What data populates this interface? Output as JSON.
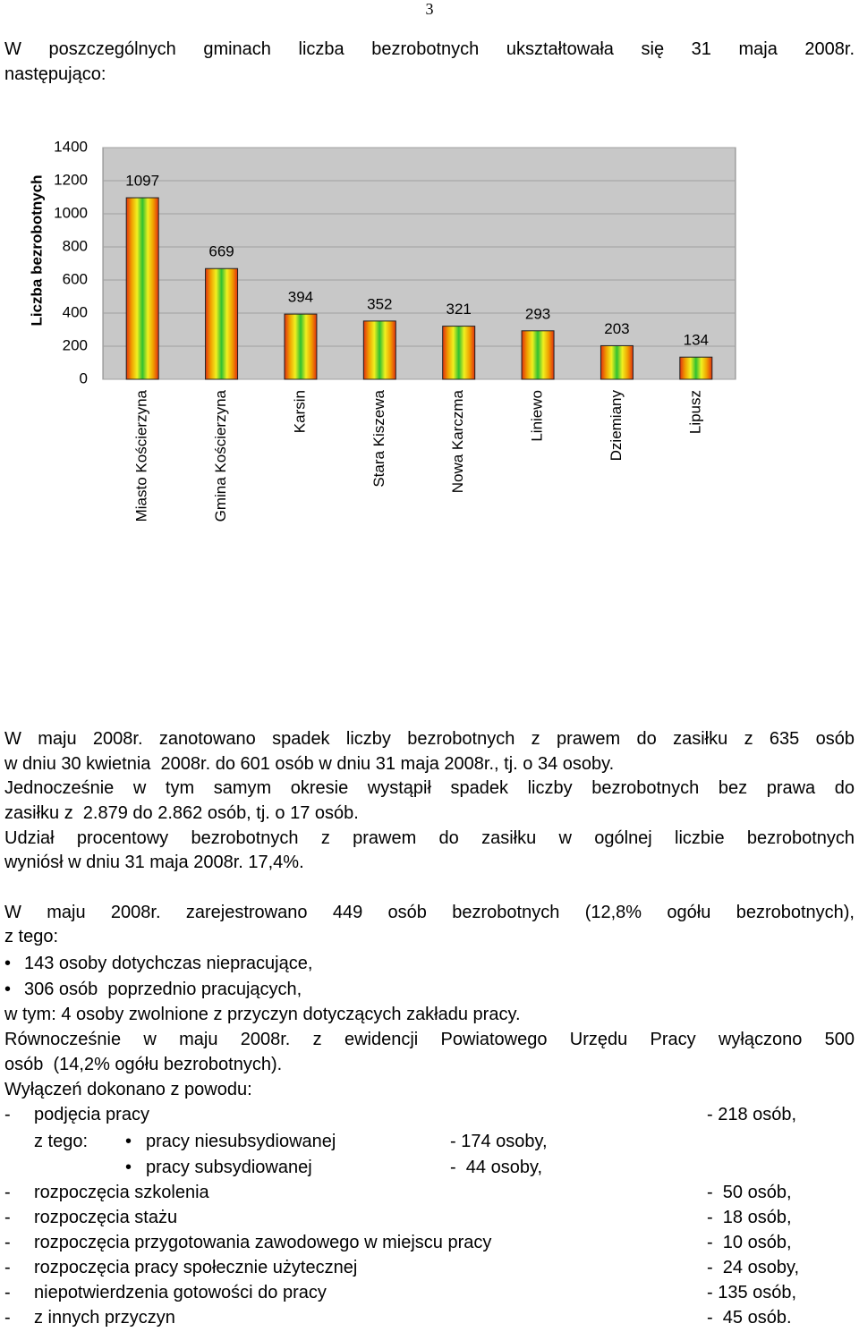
{
  "page_number": "3",
  "intro": [
    "W poszczególnych gminach liczba bezrobotnych ukształtowała się 31 maja 2008r.",
    "następująco:"
  ],
  "chart_data": {
    "type": "bar",
    "ylabel": "Liczba bezrobotnych",
    "categories": [
      "Miasto Kościerzyna",
      "Gmina Kościerzyna",
      "Karsin",
      "Stara Kiszewa",
      "Nowa Karczma",
      "Liniewo",
      "Dziemiany",
      "Lipusz"
    ],
    "values": [
      1097,
      669,
      394,
      352,
      321,
      293,
      203,
      134
    ],
    "ylim": [
      0,
      1400
    ],
    "yticks": [
      0,
      200,
      400,
      600,
      800,
      1000,
      1200,
      1400
    ],
    "grid": true,
    "color_stops": [
      "#e03010",
      "#f0a000",
      "#f0f020",
      "#30c030"
    ]
  },
  "para1": [
    "W maju 2008r. zanotowano spadek liczby bezrobotnych z prawem do zasiłku z 635 osób",
    "w dniu 30 kwietnia  2008r. do 601 osób w dniu 31 maja 2008r., tj. o 34 osoby.",
    "Jednocześnie w tym samym okresie wystąpił spadek liczby bezrobotnych bez prawa do",
    "zasiłku z  2.879 do 2.862 osób, tj. o 17 osób.",
    "Udział procentowy bezrobotnych z prawem do zasiłku w ogólnej liczbie bezrobotnych",
    "wyniósł w dniu 31 maja 2008r. 17,4%."
  ],
  "para2": [
    "W maju 2008r. zarejestrowano 449 osób bezrobotnych (12,8% ogółu bezrobotnych),",
    "z tego:"
  ],
  "bullets": [
    "143 osoby dotychczas niepracujące,",
    "306 osób  poprzednio pracujących,"
  ],
  "para3": [
    "w tym: 4 osoby zwolnione z przyczyn dotyczących zakładu pracy.",
    "Równocześnie w maju 2008r. z ewidencji Powiatowego Urzędu Pracy wyłączono 500",
    "osób  (14,2% ogółu bezrobotnych).",
    "Wyłączeń dokonano z powodu:"
  ],
  "reasons": [
    {
      "label": "podjęcia pracy",
      "value": "- 218 osób,"
    },
    {
      "prefix": "z tego:",
      "label": "pracy niesubsydiowanej",
      "value": "- 174 osoby,"
    },
    {
      "label": "pracy subsydiowanej",
      "value": "-  44 osoby,"
    },
    {
      "label": "rozpoczęcia szkolenia",
      "value": "-  50 osób,"
    },
    {
      "label": "rozpoczęcia stażu",
      "value": "-  18 osób,"
    },
    {
      "label": "rozpoczęcia przygotowania zawodowego w miejscu pracy",
      "value": "-  10 osób,"
    },
    {
      "label": "rozpoczęcia pracy społecznie użytecznej",
      "value": "-  24 osoby,"
    },
    {
      "label": "niepotwierdzenia gotowości do pracy",
      "value": "- 135 osób,"
    },
    {
      "label": "z innych przyczyn",
      "value": "-  45 osób."
    }
  ]
}
